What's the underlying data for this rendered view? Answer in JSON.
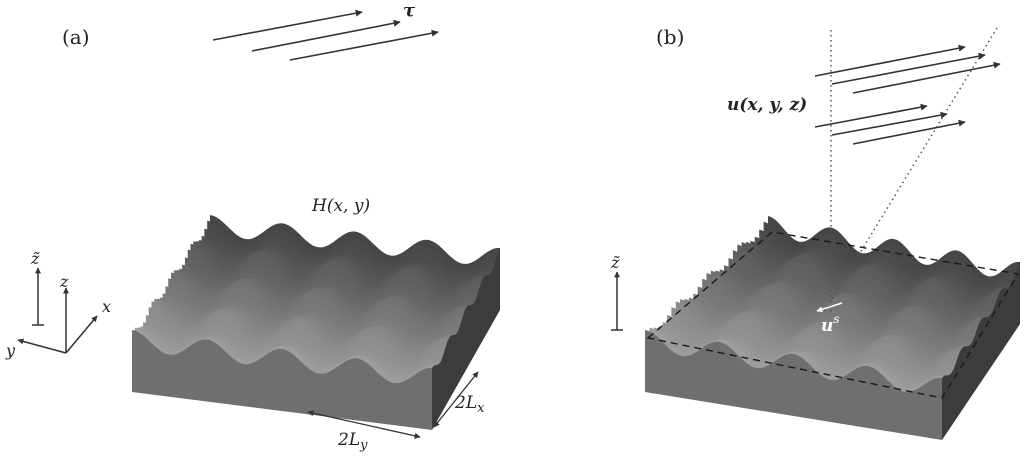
{
  "panel_a": {
    "label": "(a)",
    "stress_label": "τ",
    "surface_label": "H(x, y)",
    "axis_z_tilde": "z̃",
    "axis_z": "z",
    "axis_x": "x",
    "axis_y": "y",
    "length_x": "2L",
    "length_x_sub": "x",
    "length_y": "2L",
    "length_y_sub": "y"
  },
  "panel_b": {
    "label": "(b)",
    "velocity_label": "u(x, y, z)",
    "axis_z_tilde": "z̃",
    "slip_label": "u",
    "slip_sup": "s"
  },
  "colors": {
    "surface_dark": "#3c3c3c",
    "surface_mid": "#6f6f6f",
    "surface_light": "#b4b4b4",
    "ink": "#222222"
  }
}
